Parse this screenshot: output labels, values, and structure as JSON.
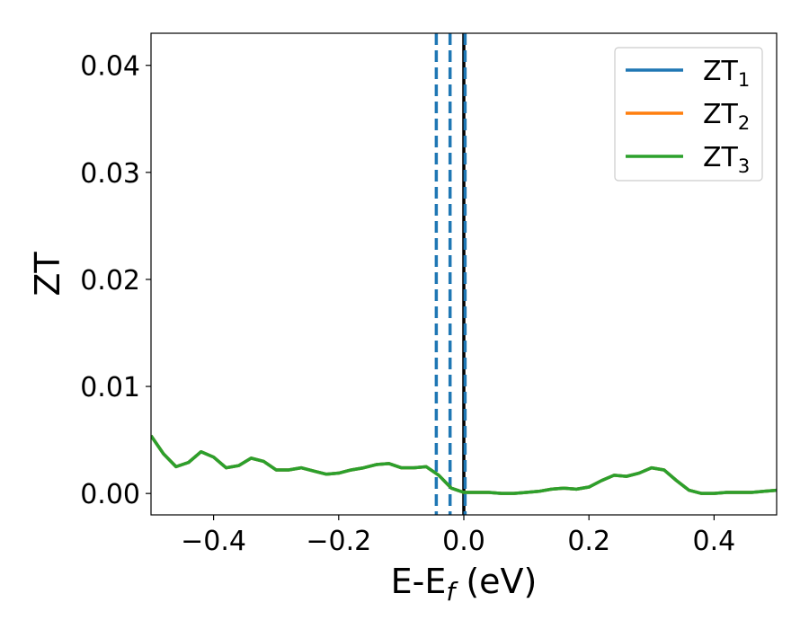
{
  "chart_data": {
    "type": "line",
    "title": "",
    "xlabel": "E-E",
    "xlabel_sub": "f",
    "xlabel_unit": " (eV)",
    "ylabel": "ZT",
    "xlim": [
      -0.5,
      0.5
    ],
    "ylim": [
      -0.002,
      0.043
    ],
    "x_ticks": [
      -0.4,
      -0.2,
      0.0,
      0.2,
      0.4
    ],
    "x_tick_labels": [
      "−0.4",
      "−0.2",
      "0.0",
      "0.2",
      "0.4"
    ],
    "y_ticks": [
      0.0,
      0.01,
      0.02,
      0.03,
      0.04
    ],
    "y_tick_labels": [
      "0.00",
      "0.01",
      "0.02",
      "0.03",
      "0.04"
    ],
    "grid": false,
    "legend_position": "top-right",
    "x": [
      -0.5,
      -0.48,
      -0.46,
      -0.44,
      -0.42,
      -0.4,
      -0.38,
      -0.36,
      -0.34,
      -0.32,
      -0.3,
      -0.28,
      -0.26,
      -0.24,
      -0.22,
      -0.2,
      -0.18,
      -0.16,
      -0.14,
      -0.12,
      -0.1,
      -0.08,
      -0.06,
      -0.04,
      -0.02,
      0.0,
      0.02,
      0.04,
      0.06,
      0.08,
      0.1,
      0.12,
      0.14,
      0.16,
      0.18,
      0.2,
      0.22,
      0.24,
      0.26,
      0.28,
      0.3,
      0.32,
      0.34,
      0.36,
      0.38,
      0.4,
      0.42,
      0.44,
      0.46,
      0.48,
      0.5
    ],
    "series": [
      {
        "name": "ZT",
        "sub": "1",
        "color": "#1f77b4",
        "values": [
          0.0054,
          0.0037,
          0.0025,
          0.0029,
          0.0039,
          0.0034,
          0.0024,
          0.0026,
          0.0033,
          0.003,
          0.0022,
          0.0022,
          0.0024,
          0.0021,
          0.0018,
          0.0019,
          0.0022,
          0.0024,
          0.0027,
          0.0028,
          0.0024,
          0.0024,
          0.0025,
          0.0017,
          0.0005,
          0.0001,
          0.0001,
          0.0001,
          0.0,
          0.0,
          0.0001,
          0.0002,
          0.0004,
          0.0005,
          0.0004,
          0.0006,
          0.0012,
          0.0017,
          0.0016,
          0.0019,
          0.0024,
          0.0022,
          0.0012,
          0.0003,
          0.0,
          0.0,
          0.0001,
          0.0001,
          0.0001,
          0.0002,
          0.0003
        ]
      },
      {
        "name": "ZT",
        "sub": "2",
        "color": "#ff7f0e",
        "values": [
          0.0054,
          0.0037,
          0.0025,
          0.0029,
          0.0039,
          0.0034,
          0.0024,
          0.0026,
          0.0033,
          0.003,
          0.0022,
          0.0022,
          0.0024,
          0.0021,
          0.0018,
          0.0019,
          0.0022,
          0.0024,
          0.0027,
          0.0028,
          0.0024,
          0.0024,
          0.0025,
          0.0017,
          0.0005,
          0.0001,
          0.0001,
          0.0001,
          0.0,
          0.0,
          0.0001,
          0.0002,
          0.0004,
          0.0005,
          0.0004,
          0.0006,
          0.0012,
          0.0017,
          0.0016,
          0.0019,
          0.0024,
          0.0022,
          0.0012,
          0.0003,
          0.0,
          0.0,
          0.0001,
          0.0001,
          0.0001,
          0.0002,
          0.0003
        ]
      },
      {
        "name": "ZT",
        "sub": "3",
        "color": "#2ca02c",
        "values": [
          0.0054,
          0.0037,
          0.0025,
          0.0029,
          0.0039,
          0.0034,
          0.0024,
          0.0026,
          0.0033,
          0.003,
          0.0022,
          0.0022,
          0.0024,
          0.0021,
          0.0018,
          0.0019,
          0.0022,
          0.0024,
          0.0027,
          0.0028,
          0.0024,
          0.0024,
          0.0025,
          0.0017,
          0.0005,
          0.0001,
          0.0001,
          0.0001,
          0.0,
          0.0,
          0.0001,
          0.0002,
          0.0004,
          0.0005,
          0.0004,
          0.0006,
          0.0012,
          0.0017,
          0.0016,
          0.0019,
          0.0024,
          0.0022,
          0.0012,
          0.0003,
          0.0,
          0.0,
          0.0001,
          0.0001,
          0.0001,
          0.0002,
          0.0003
        ]
      }
    ],
    "vlines": [
      {
        "x": -0.044,
        "color": "#1f77b4",
        "style": "dashed"
      },
      {
        "x": -0.022,
        "color": "#1f77b4",
        "style": "dashed"
      },
      {
        "x": 0.0,
        "color": "#000000",
        "style": "solid"
      },
      {
        "x": 0.002,
        "color": "#1f77b4",
        "style": "dashed"
      }
    ]
  }
}
